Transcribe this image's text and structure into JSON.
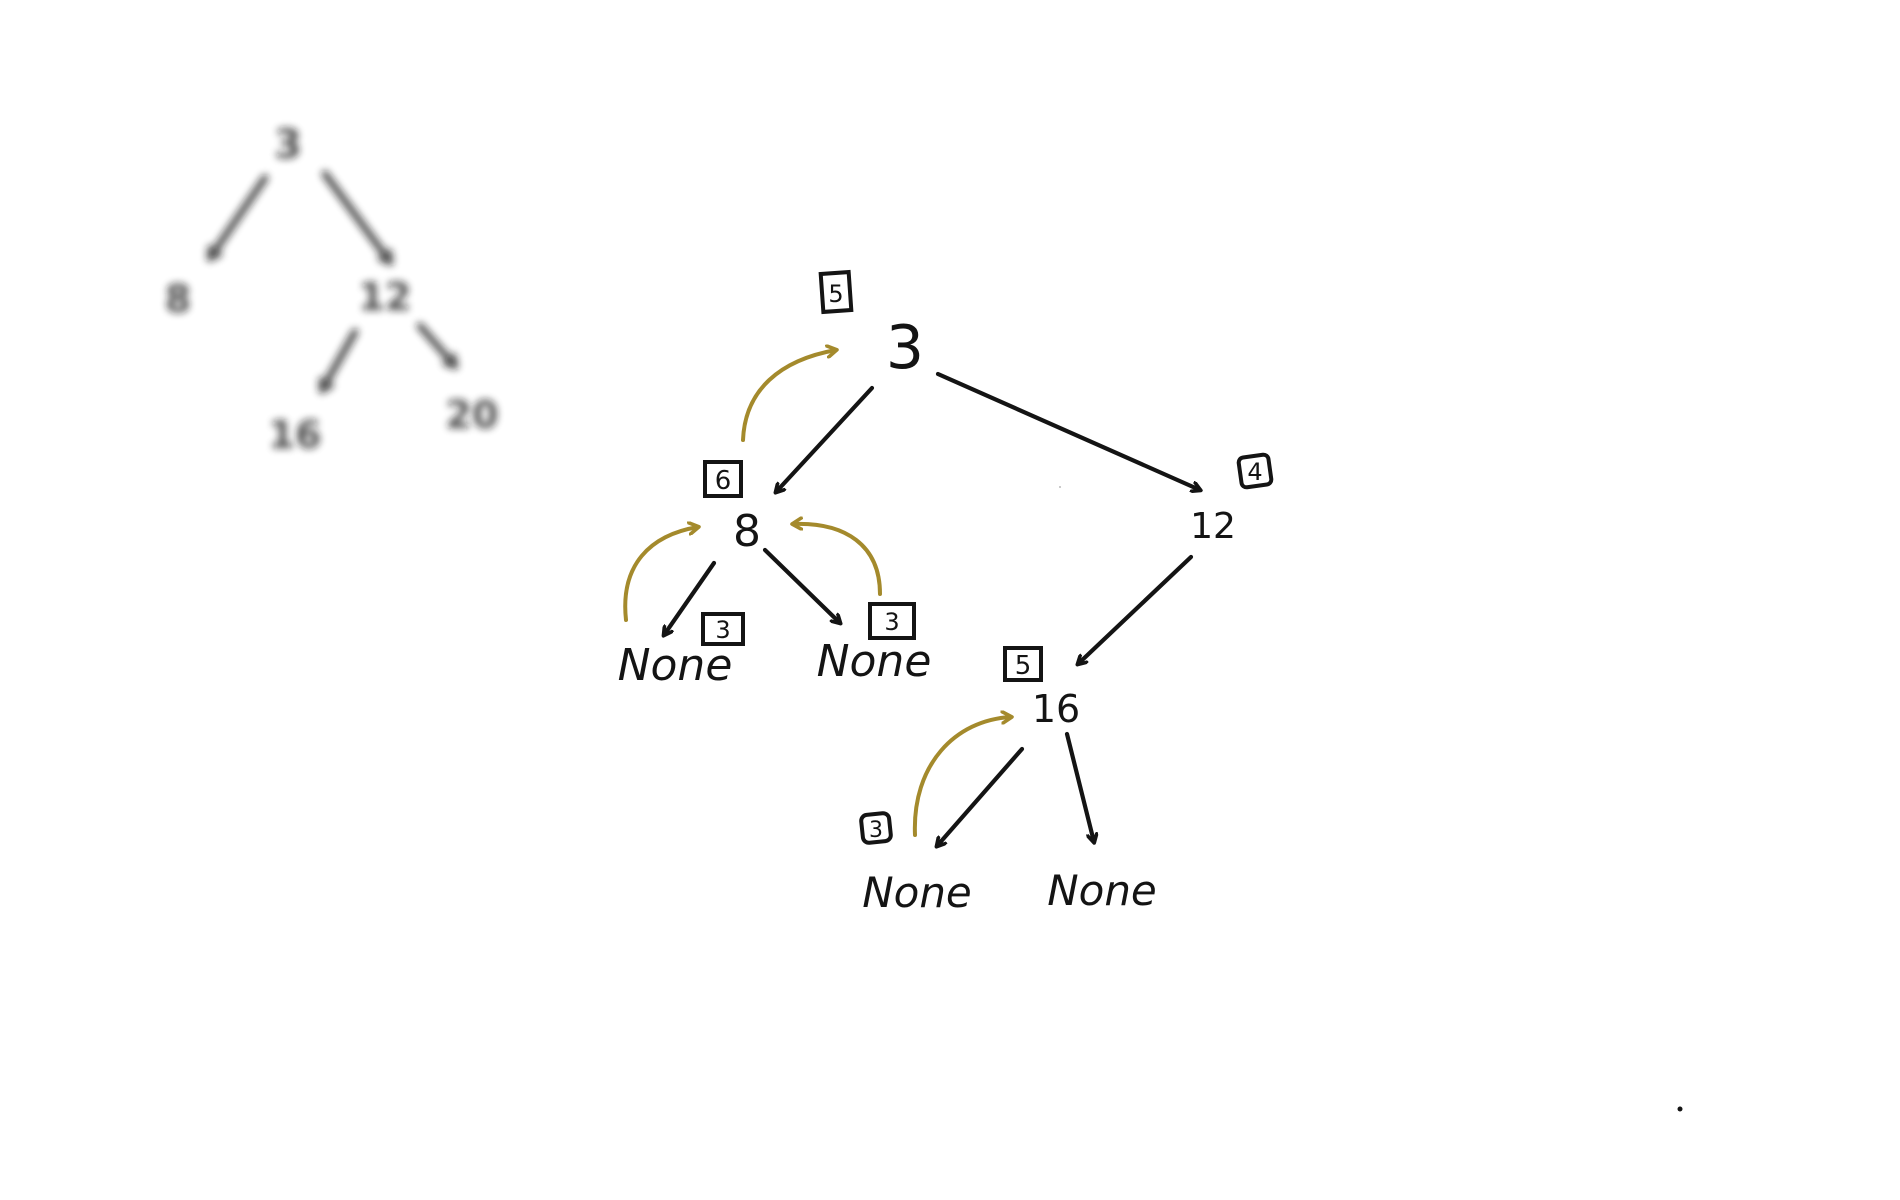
{
  "colors": {
    "ink": "#141414",
    "return_arrow": "#a48a2c",
    "background": "#ffffff"
  },
  "thumbnail_tree": {
    "nodes": {
      "root": "3",
      "left": "8",
      "right": "12",
      "right_left": "16",
      "right_right": "20"
    }
  },
  "tree": {
    "nodes": {
      "root": "3",
      "left": "8",
      "right": "12",
      "right_left": "16",
      "left_left": "None",
      "left_right": "None",
      "right_left_left": "None",
      "right_left_right": "None"
    },
    "boxes": {
      "root": "5",
      "left": "6",
      "right": "4",
      "right_left": "5",
      "left_left": "3",
      "left_right": "3",
      "right_left_left": "3"
    }
  }
}
